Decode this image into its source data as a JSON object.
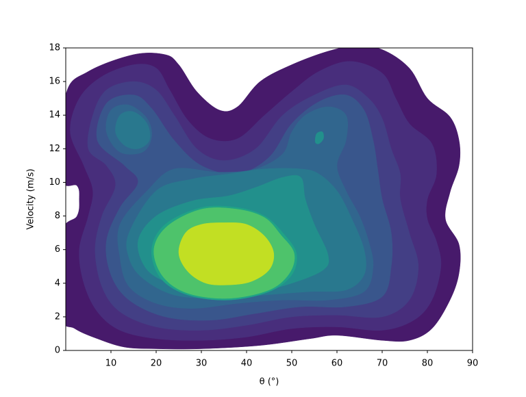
{
  "chart_data": {
    "type": "contourf",
    "xlabel": "θ (°)",
    "ylabel": "Velocity (m/s)",
    "xlim": [
      0,
      90
    ],
    "xticks": [
      10,
      20,
      30,
      40,
      50,
      60,
      70,
      80,
      90
    ],
    "ylim": [
      0,
      18
    ],
    "yticks": [
      0,
      2,
      4,
      6,
      8,
      10,
      12,
      14,
      16,
      18
    ],
    "contours": [
      {
        "color": "#471a6b",
        "points": [
          [
            0,
            15.2
          ],
          [
            5,
            16.6
          ],
          [
            15,
            17.6
          ],
          [
            22,
            17.6
          ],
          [
            25,
            17
          ],
          [
            29,
            15.4
          ],
          [
            34,
            14.3
          ],
          [
            38,
            14.5
          ],
          [
            43,
            16
          ],
          [
            50,
            17
          ],
          [
            58,
            17.8
          ],
          [
            64,
            18.1
          ],
          [
            70,
            17.9
          ],
          [
            76,
            16.8
          ],
          [
            80,
            15
          ],
          [
            85,
            13.9
          ],
          [
            87,
            12.5
          ],
          [
            87,
            11
          ],
          [
            85,
            9.4
          ],
          [
            84,
            7.8
          ],
          [
            87,
            6.3
          ],
          [
            87,
            4.6
          ],
          [
            85,
            3
          ],
          [
            81,
            1.3
          ],
          [
            76,
            0.6
          ],
          [
            70,
            0.6
          ],
          [
            60,
            0.9
          ],
          [
            54,
            0.7
          ],
          [
            43,
            0.3
          ],
          [
            30,
            0.1
          ],
          [
            20,
            0.1
          ],
          [
            13,
            0.2
          ],
          [
            7,
            0.7
          ],
          [
            2,
            1.3
          ],
          [
            -1,
            2.1
          ],
          [
            -1,
            6.9
          ],
          [
            2.5,
            8
          ],
          [
            3,
            9
          ],
          [
            2.5,
            9.8
          ],
          [
            -1,
            10.3
          ]
        ]
      },
      {
        "color": "#482e7c",
        "points": [
          [
            1,
            13
          ],
          [
            3,
            15
          ],
          [
            8,
            16.3
          ],
          [
            15,
            17
          ],
          [
            20,
            16.8
          ],
          [
            23,
            15.5
          ],
          [
            27,
            13.7
          ],
          [
            32,
            12.6
          ],
          [
            38,
            12.6
          ],
          [
            44,
            14
          ],
          [
            50,
            15.4
          ],
          [
            56,
            16.6
          ],
          [
            63,
            17.2
          ],
          [
            70,
            16.5
          ],
          [
            73,
            15
          ],
          [
            76,
            13.5
          ],
          [
            81,
            12.3
          ],
          [
            82,
            10.5
          ],
          [
            80,
            9
          ],
          [
            80,
            7.8
          ],
          [
            82,
            6.5
          ],
          [
            83,
            5
          ],
          [
            81,
            3
          ],
          [
            77,
            1.8
          ],
          [
            70,
            1.2
          ],
          [
            60,
            1.4
          ],
          [
            50,
            1.3
          ],
          [
            40,
            0.8
          ],
          [
            30,
            0.6
          ],
          [
            20,
            0.7
          ],
          [
            12,
            1.2
          ],
          [
            7,
            2.3
          ],
          [
            4,
            4
          ],
          [
            3,
            6
          ],
          [
            5,
            8
          ],
          [
            6,
            9.5
          ],
          [
            4,
            11
          ]
        ]
      },
      {
        "color": "#433f85",
        "points": [
          [
            5,
            12
          ],
          [
            6,
            14
          ],
          [
            9,
            15.5
          ],
          [
            15,
            16
          ],
          [
            20,
            15.5
          ],
          [
            24,
            14
          ],
          [
            29,
            12
          ],
          [
            35,
            11.3
          ],
          [
            42,
            12
          ],
          [
            48,
            14
          ],
          [
            55,
            15.2
          ],
          [
            62,
            15.8
          ],
          [
            67,
            15
          ],
          [
            70,
            13.8
          ],
          [
            72,
            12
          ],
          [
            74,
            10.5
          ],
          [
            74,
            9
          ],
          [
            76,
            7
          ],
          [
            78,
            5
          ],
          [
            76,
            3
          ],
          [
            70,
            2
          ],
          [
            60,
            2.1
          ],
          [
            50,
            2
          ],
          [
            40,
            1.5
          ],
          [
            30,
            1.2
          ],
          [
            20,
            1.4
          ],
          [
            12,
            2.3
          ],
          [
            8,
            3.8
          ],
          [
            6.5,
            6
          ],
          [
            8,
            8
          ],
          [
            11,
            9.8
          ],
          [
            9,
            11
          ]
        ]
      },
      {
        "color": "#39568c",
        "points": [
          [
            7,
            12.5
          ],
          [
            9,
            14.7
          ],
          [
            15,
            15.2
          ],
          [
            19,
            14.4
          ],
          [
            24,
            12.5
          ],
          [
            30,
            11
          ],
          [
            38,
            10.5
          ],
          [
            45,
            11.5
          ],
          [
            50,
            13.5
          ],
          [
            56,
            14.8
          ],
          [
            62,
            15.2
          ],
          [
            66,
            14.3
          ],
          [
            68,
            12.5
          ],
          [
            69,
            10.8
          ],
          [
            70,
            9
          ],
          [
            72,
            7
          ],
          [
            72,
            5
          ],
          [
            70,
            3.2
          ],
          [
            62,
            2.6
          ],
          [
            52,
            2.6
          ],
          [
            42,
            2.2
          ],
          [
            32,
            1.8
          ],
          [
            22,
            2
          ],
          [
            14,
            3
          ],
          [
            10,
            4.5
          ],
          [
            9,
            6.5
          ],
          [
            12,
            8.5
          ],
          [
            16,
            10
          ],
          [
            13,
            11
          ]
        ]
      },
      {
        "color": "#31668e",
        "points": [
          [
            9,
            13
          ],
          [
            10,
            14.3
          ],
          [
            14,
            14.6
          ],
          [
            18,
            13.8
          ],
          [
            19,
            12.7
          ],
          [
            17,
            11.8
          ],
          [
            12,
            11.8
          ]
        ]
      },
      {
        "color": "#31668e",
        "points": [
          [
            12,
            7.5
          ],
          [
            18,
            9.5
          ],
          [
            24,
            10.8
          ],
          [
            34,
            10.6
          ],
          [
            42,
            10.8
          ],
          [
            48,
            11.7
          ],
          [
            50,
            13
          ],
          [
            53,
            14
          ],
          [
            58,
            14.5
          ],
          [
            62,
            14
          ],
          [
            62,
            12.5
          ],
          [
            60,
            11
          ],
          [
            62,
            9.5
          ],
          [
            65,
            8
          ],
          [
            67,
            6.5
          ],
          [
            68,
            5
          ],
          [
            66,
            3.5
          ],
          [
            58,
            3
          ],
          [
            48,
            3
          ],
          [
            38,
            2.8
          ],
          [
            28,
            2.5
          ],
          [
            20,
            2.8
          ],
          [
            14,
            3.8
          ],
          [
            12,
            5.5
          ]
        ]
      },
      {
        "color": "#29788e",
        "points": [
          [
            11,
            13
          ],
          [
            12,
            14
          ],
          [
            15,
            14.2
          ],
          [
            18,
            13.5
          ],
          [
            18.5,
            12.5
          ],
          [
            16,
            12
          ],
          [
            13,
            12.2
          ]
        ]
      },
      {
        "color": "#29788e",
        "points": [
          [
            14,
            7
          ],
          [
            20,
            9.5
          ],
          [
            28,
            10.2
          ],
          [
            36,
            10.5
          ],
          [
            44,
            10.8
          ],
          [
            52,
            10.8
          ],
          [
            56,
            10.5
          ],
          [
            60,
            9.5
          ],
          [
            63,
            8
          ],
          [
            66,
            6
          ],
          [
            66,
            4.5
          ],
          [
            62,
            3.6
          ],
          [
            54,
            3.5
          ],
          [
            44,
            3.3
          ],
          [
            34,
            3.1
          ],
          [
            24,
            3.3
          ],
          [
            17,
            4.3
          ],
          [
            14,
            5.5
          ]
        ]
      },
      {
        "color": "#22908c",
        "points": [
          [
            55.5,
            12.9
          ],
          [
            56.8,
            13
          ],
          [
            57,
            12.6
          ],
          [
            56,
            12.3
          ],
          [
            55.2,
            12.4
          ]
        ]
      },
      {
        "color": "#22908c",
        "points": [
          [
            16,
            6.5
          ],
          [
            20,
            8
          ],
          [
            28,
            8.9
          ],
          [
            36,
            9.2
          ],
          [
            42,
            9.7
          ],
          [
            48,
            10.3
          ],
          [
            52,
            10.3
          ],
          [
            53,
            9
          ],
          [
            55,
            7.5
          ],
          [
            58,
            5.7
          ],
          [
            57,
            4.8
          ],
          [
            50,
            4
          ],
          [
            42,
            3.5
          ],
          [
            32,
            3.4
          ],
          [
            24,
            3.9
          ],
          [
            18,
            4.8
          ]
        ]
      },
      {
        "color": "#20a386",
        "points": [
          [
            19,
            6
          ],
          [
            22,
            7.5
          ],
          [
            30,
            8.5
          ],
          [
            38,
            8.5
          ],
          [
            44,
            8
          ],
          [
            48,
            7
          ],
          [
            51,
            5.8
          ],
          [
            50,
            4.5
          ],
          [
            45,
            3.5
          ],
          [
            36,
            3
          ],
          [
            27,
            3.3
          ],
          [
            21,
            4.3
          ]
        ]
      },
      {
        "color": "#4ec36b",
        "points": [
          [
            19.5,
            6
          ],
          [
            22.5,
            7.4
          ],
          [
            30,
            8.4
          ],
          [
            38,
            8.4
          ],
          [
            44,
            7.9
          ],
          [
            47.5,
            6.9
          ],
          [
            50.5,
            5.8
          ],
          [
            49.5,
            4.6
          ],
          [
            45,
            3.6
          ],
          [
            36,
            3.1
          ],
          [
            27,
            3.4
          ],
          [
            21.5,
            4.4
          ]
        ]
      },
      {
        "color": "#c2df23",
        "points": [
          [
            25,
            5.8
          ],
          [
            26.5,
            7
          ],
          [
            30,
            7.5
          ],
          [
            35,
            7.6
          ],
          [
            40,
            7.5
          ],
          [
            44,
            6.8
          ],
          [
            46,
            5.8
          ],
          [
            45,
            4.8
          ],
          [
            41,
            4.1
          ],
          [
            36,
            3.9
          ],
          [
            31,
            4
          ],
          [
            27,
            4.7
          ]
        ]
      }
    ]
  }
}
